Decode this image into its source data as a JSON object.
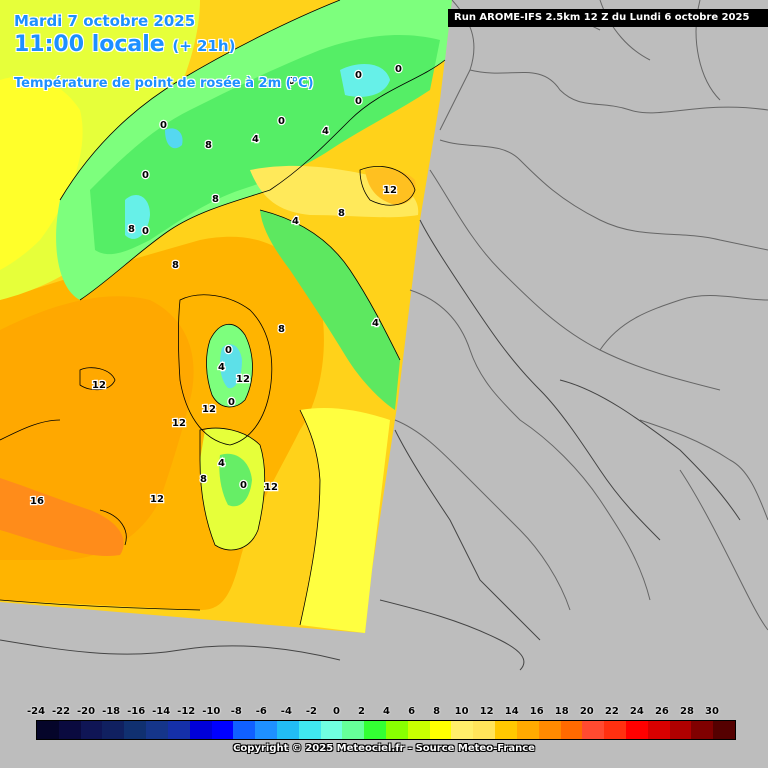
{
  "header": {
    "date": "Mardi 7 octobre 2025",
    "time_main": "11:00 locale",
    "time_offset": "(+ 21h)",
    "parameter": "Température de point de rosée à 2m (°C)"
  },
  "run_info": "Run AROME-IFS 2.5km 12 Z du Lundi 6 octobre 2025",
  "legend": {
    "ticks": [
      "-24",
      "-22",
      "-20",
      "-18",
      "-16",
      "-14",
      "-12",
      "-10",
      "-8",
      "-6",
      "-4",
      "-2",
      "0",
      "2",
      "4",
      "6",
      "8",
      "10",
      "12",
      "14",
      "16",
      "18",
      "20",
      "22",
      "24",
      "26",
      "28",
      "30"
    ],
    "colors": [
      "#05052a",
      "#0a0a3f",
      "#0f1555",
      "#102060",
      "#103070",
      "#15358a",
      "#1530a8",
      "#0000d8",
      "#0000ff",
      "#1060ff",
      "#1e90ff",
      "#22bdf5",
      "#40e8f0",
      "#70ffe0",
      "#66ff99",
      "#33ff33",
      "#88ff00",
      "#c8ff00",
      "#ffff00",
      "#ffef6a",
      "#ffe45a",
      "#ffc800",
      "#ffaa00",
      "#ff8a00",
      "#ff6a00",
      "#ff4a30",
      "#ff3010",
      "#ff0000",
      "#d80000",
      "#b00000",
      "#800000",
      "#550000"
    ]
  },
  "copyright": "Copyright © 2025 Meteociel.fr - Source Meteo-France",
  "contour_labels": [
    "0",
    "0",
    "0",
    "0",
    "0",
    "0",
    "0",
    "0",
    "0",
    "0",
    "0",
    "8",
    "8",
    "8",
    "8",
    "8",
    "8",
    "8",
    "4",
    "4",
    "4",
    "4",
    "4",
    "4",
    "12",
    "12",
    "12",
    "12",
    "12",
    "12",
    "12",
    "16"
  ],
  "colors": {
    "no_data": "#bdbdbd",
    "border": "#666666"
  }
}
